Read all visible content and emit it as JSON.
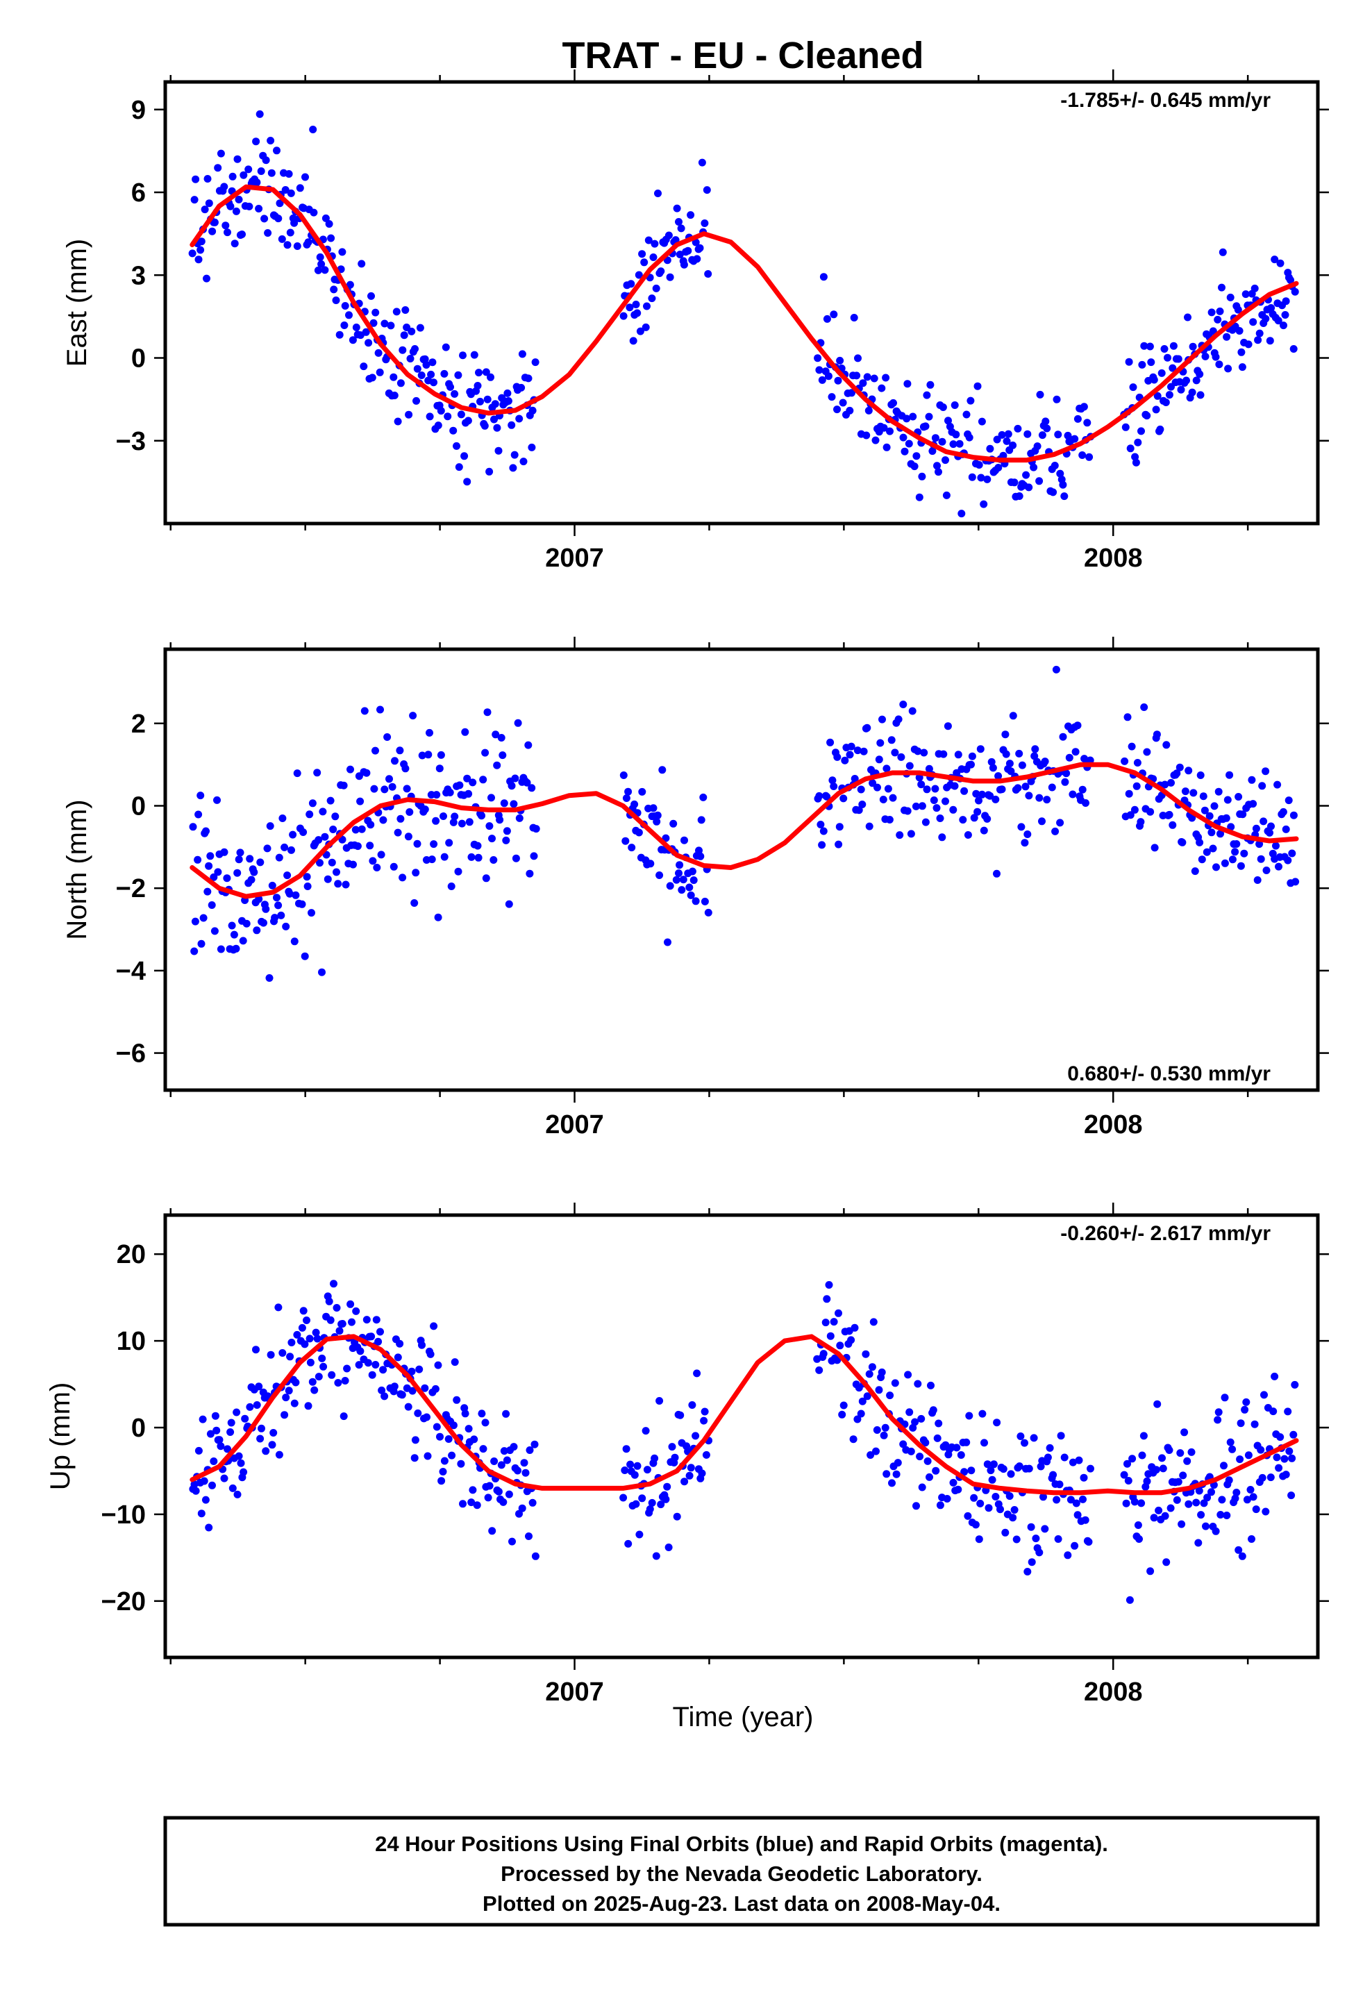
{
  "title": "TRAT  - EU - Cleaned",
  "x_axis_label": "Time (year)",
  "footer": {
    "line1": "24 Hour Positions Using Final Orbits (blue) and Rapid Orbits (magenta).",
    "line2": "Processed by the Nevada Geodetic Laboratory.",
    "line3": "Plotted on 2025-Aug-23. Last data on 2008-May-04."
  },
  "colors": {
    "points": "#0000ff",
    "fit": "#ff0000",
    "frame": "#000000"
  },
  "chart_data": [
    {
      "type": "scatter",
      "component": "East",
      "ylabel": "East (mm)",
      "rate_text": "-1.785+/- 0.645 mm/yr",
      "rate_position": "top-right",
      "xlim": [
        2006.24,
        2008.38
      ],
      "ylim": [
        -6,
        10
      ],
      "x_ticks": [
        2007,
        2008
      ],
      "y_ticks": [
        9,
        6,
        3,
        0,
        -3
      ],
      "y_tick_labels": [
        "9",
        "6",
        "3",
        "0",
        "−3"
      ],
      "grid": false,
      "fit": {
        "x": [
          2006.29,
          2006.34,
          2006.39,
          2006.44,
          2006.49,
          2006.54,
          2006.59,
          2006.64,
          2006.69,
          2006.74,
          2006.79,
          2006.84,
          2006.89,
          2006.94,
          2006.99,
          2007.04,
          2007.09,
          2007.14,
          2007.19,
          2007.24,
          2007.29,
          2007.34,
          2007.39,
          2007.44,
          2007.49,
          2007.54,
          2007.59,
          2007.64,
          2007.69,
          2007.74,
          2007.79,
          2007.84,
          2007.89,
          2007.94,
          2007.99,
          2008.04,
          2008.09,
          2008.14,
          2008.19,
          2008.24,
          2008.29,
          2008.34
        ],
        "y": [
          4.1,
          5.5,
          6.2,
          6.1,
          5.2,
          3.8,
          2.0,
          0.5,
          -0.6,
          -1.3,
          -1.8,
          -2.0,
          -1.9,
          -1.4,
          -0.6,
          0.6,
          1.9,
          3.2,
          4.1,
          4.5,
          4.2,
          3.3,
          2.0,
          0.7,
          -0.5,
          -1.5,
          -2.3,
          -2.9,
          -3.4,
          -3.6,
          -3.7,
          -3.7,
          -3.5,
          -3.1,
          -2.5,
          -1.8,
          -1.0,
          -0.1,
          0.8,
          1.6,
          2.3,
          2.7
        ]
      },
      "segments": [
        {
          "x0": 2006.29,
          "x1": 2006.93,
          "amp": 1.0,
          "n": 230
        },
        {
          "x0": 2007.09,
          "x1": 2007.25,
          "amp": 1.0,
          "n": 55
        },
        {
          "x0": 2007.45,
          "x1": 2007.96,
          "amp": 0.9,
          "n": 170
        },
        {
          "x0": 2008.02,
          "x1": 2008.34,
          "amp": 0.9,
          "n": 115
        }
      ]
    },
    {
      "type": "scatter",
      "component": "North",
      "ylabel": "North (mm)",
      "rate_text": "0.680+/- 0.530 mm/yr",
      "rate_position": "bottom-right",
      "xlim": [
        2006.24,
        2008.38
      ],
      "ylim": [
        -6.9,
        3.8
      ],
      "x_ticks": [
        2007,
        2008
      ],
      "y_ticks": [
        2,
        0,
        -2,
        -4,
        -6
      ],
      "y_tick_labels": [
        "2",
        "0",
        "−2",
        "−4",
        "−6"
      ],
      "grid": false,
      "fit": {
        "x": [
          2006.29,
          2006.34,
          2006.39,
          2006.44,
          2006.49,
          2006.54,
          2006.59,
          2006.64,
          2006.69,
          2006.74,
          2006.79,
          2006.84,
          2006.89,
          2006.94,
          2006.99,
          2007.04,
          2007.09,
          2007.14,
          2007.19,
          2007.24,
          2007.29,
          2007.34,
          2007.39,
          2007.44,
          2007.49,
          2007.54,
          2007.59,
          2007.64,
          2007.69,
          2007.74,
          2007.79,
          2007.84,
          2007.89,
          2007.94,
          2007.99,
          2008.04,
          2008.09,
          2008.14,
          2008.19,
          2008.24,
          2008.29,
          2008.34
        ],
        "y": [
          -1.5,
          -2.0,
          -2.2,
          -2.1,
          -1.7,
          -1.0,
          -0.4,
          0.0,
          0.15,
          0.1,
          -0.05,
          -0.1,
          -0.1,
          0.05,
          0.25,
          0.3,
          0.0,
          -0.6,
          -1.2,
          -1.45,
          -1.5,
          -1.3,
          -0.9,
          -0.3,
          0.3,
          0.65,
          0.8,
          0.8,
          0.7,
          0.6,
          0.6,
          0.7,
          0.85,
          1.0,
          1.0,
          0.8,
          0.4,
          -0.1,
          -0.5,
          -0.75,
          -0.85,
          -0.8
        ]
      },
      "segments": [
        {
          "x0": 2006.29,
          "x1": 2006.93,
          "amp": 1.0,
          "n": 230
        },
        {
          "x0": 2007.09,
          "x1": 2007.25,
          "amp": 0.8,
          "n": 55
        },
        {
          "x0": 2007.45,
          "x1": 2007.96,
          "amp": 0.8,
          "n": 170
        },
        {
          "x0": 2008.02,
          "x1": 2008.34,
          "amp": 0.7,
          "n": 115
        }
      ]
    },
    {
      "type": "scatter",
      "component": "Up",
      "ylabel": "Up (mm)",
      "rate_text": "-0.260+/- 2.617 mm/yr",
      "rate_position": "top-right",
      "xlim": [
        2006.24,
        2008.38
      ],
      "ylim": [
        -26.5,
        24.5
      ],
      "x_ticks": [
        2007,
        2008
      ],
      "y_ticks": [
        20,
        10,
        0,
        -10,
        -20
      ],
      "y_tick_labels": [
        "20",
        "10",
        "0",
        "−10",
        "−20"
      ],
      "grid": false,
      "fit": {
        "x": [
          2006.29,
          2006.34,
          2006.39,
          2006.44,
          2006.49,
          2006.54,
          2006.59,
          2006.64,
          2006.69,
          2006.74,
          2006.79,
          2006.84,
          2006.89,
          2006.94,
          2006.99,
          2007.04,
          2007.09,
          2007.14,
          2007.19,
          2007.24,
          2007.29,
          2007.34,
          2007.39,
          2007.44,
          2007.49,
          2007.54,
          2007.59,
          2007.64,
          2007.69,
          2007.74,
          2007.79,
          2007.84,
          2007.89,
          2007.94,
          2007.99,
          2008.04,
          2008.09,
          2008.14,
          2008.19,
          2008.24,
          2008.29,
          2008.34
        ],
        "y": [
          -6,
          -4.5,
          -1,
          3.5,
          7.5,
          10.2,
          10.5,
          9,
          6,
          2,
          -2,
          -5,
          -6.5,
          -7,
          -7,
          -7,
          -7,
          -6.5,
          -5,
          -1.5,
          3,
          7.5,
          10,
          10.5,
          8.5,
          5,
          1,
          -2,
          -4.5,
          -6.5,
          -7,
          -7.3,
          -7.5,
          -7.5,
          -7.3,
          -7.5,
          -7.5,
          -7,
          -6,
          -4.5,
          -3,
          -1.5
        ]
      },
      "segments": [
        {
          "x0": 2006.29,
          "x1": 2006.93,
          "amp": 3.5,
          "n": 230
        },
        {
          "x0": 2007.09,
          "x1": 2007.25,
          "amp": 4.0,
          "n": 55
        },
        {
          "x0": 2007.45,
          "x1": 2007.96,
          "amp": 3.8,
          "n": 170
        },
        {
          "x0": 2008.02,
          "x1": 2008.34,
          "amp": 4.5,
          "n": 115
        }
      ]
    }
  ]
}
